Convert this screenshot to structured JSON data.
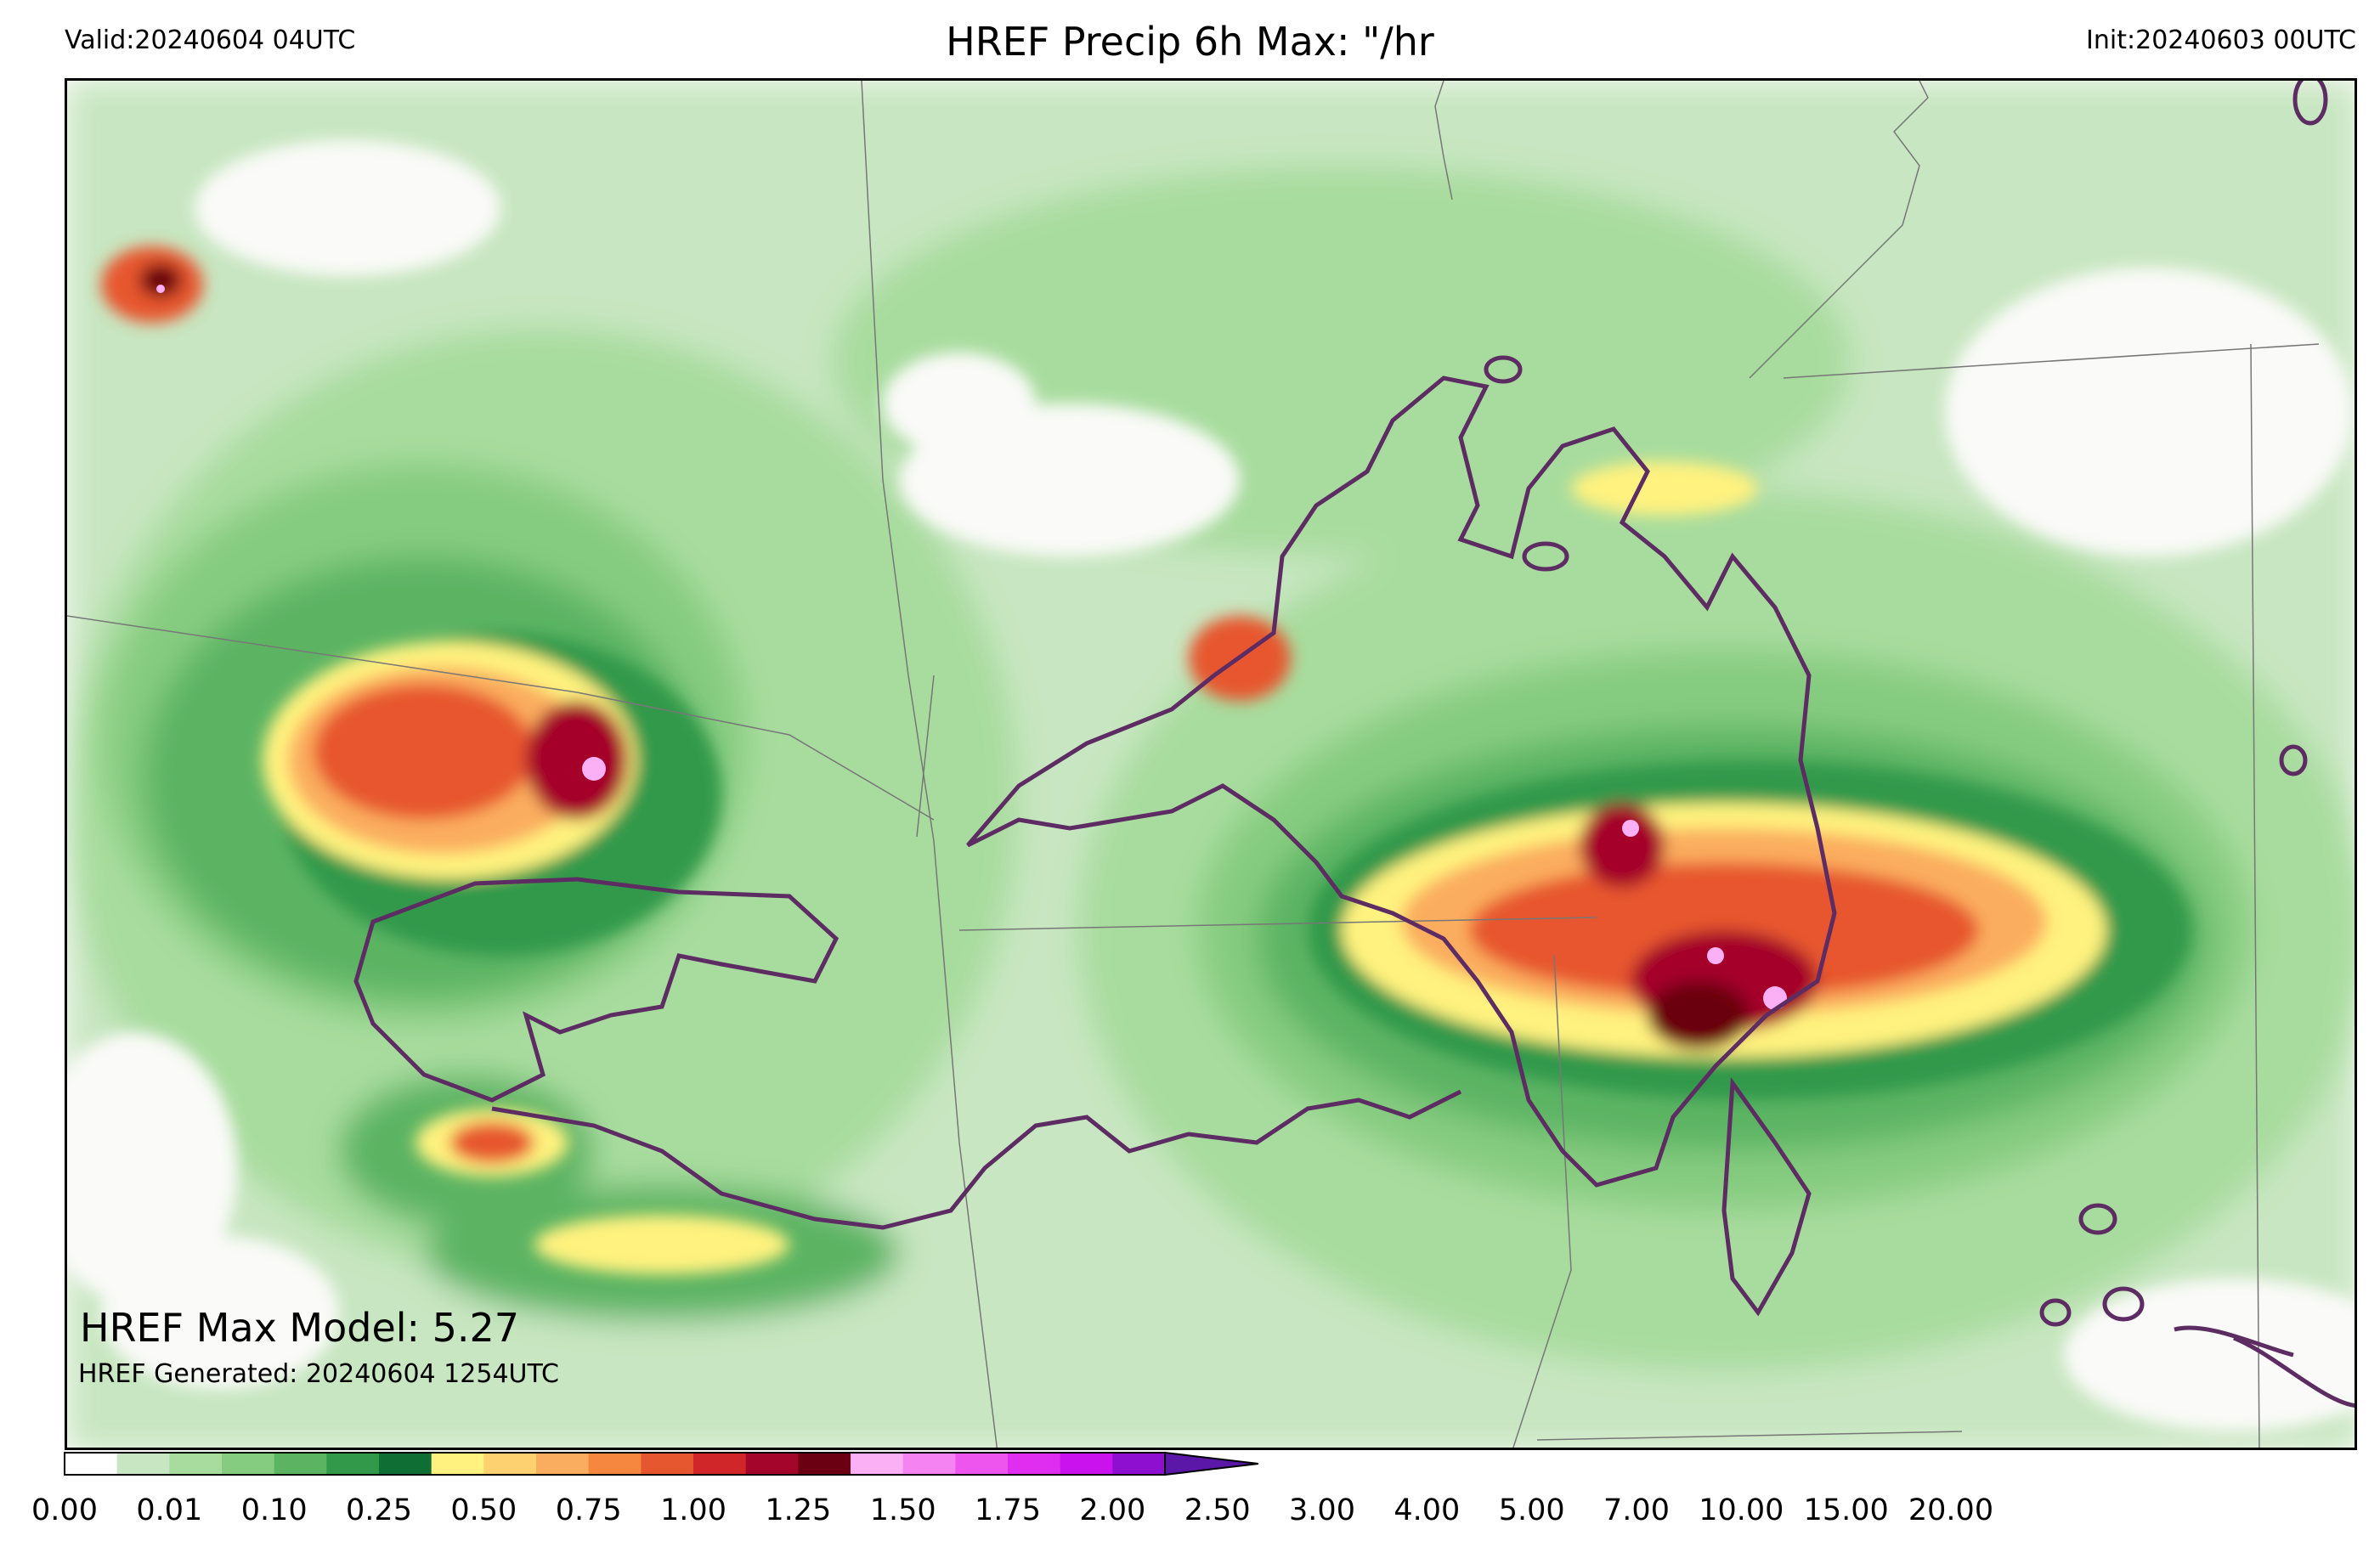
{
  "header": {
    "valid": "Valid:20240604 04UTC",
    "title": "HREF Precip 6h Max: \"/hr",
    "init": "Init:20240603 00UTC"
  },
  "annotations": {
    "max_model": "HREF Max Model: 5.27",
    "generated": "HREF Generated: 20240604 1254UTC"
  },
  "colorbar": {
    "ticks": [
      "0.00",
      "0.01",
      "0.10",
      "0.25",
      "0.50",
      "0.75",
      "1.00",
      "1.25",
      "1.50",
      "1.75",
      "2.00",
      "2.50",
      "3.00",
      "4.00",
      "5.00",
      "7.00",
      "10.00",
      "15.00",
      "20.00"
    ],
    "colors": [
      "#ffffff",
      "#c8e6c1",
      "#a8dc9e",
      "#86cc80",
      "#5cb463",
      "#32994b",
      "#0f6e34",
      "#fff27f",
      "#fed170",
      "#fbad5f",
      "#f5873f",
      "#e7572f",
      "#d02629",
      "#a4062b",
      "#6a0011",
      "#fbb0f5",
      "#f583f2",
      "#ed55ee",
      "#e02ef0",
      "#c912ee",
      "#8e0fd0"
    ],
    "extend_color": "#5a17a8"
  },
  "map": {
    "background": "#fafaf8",
    "contour_color": "#5d2c63",
    "boundary_color": "#777777"
  }
}
